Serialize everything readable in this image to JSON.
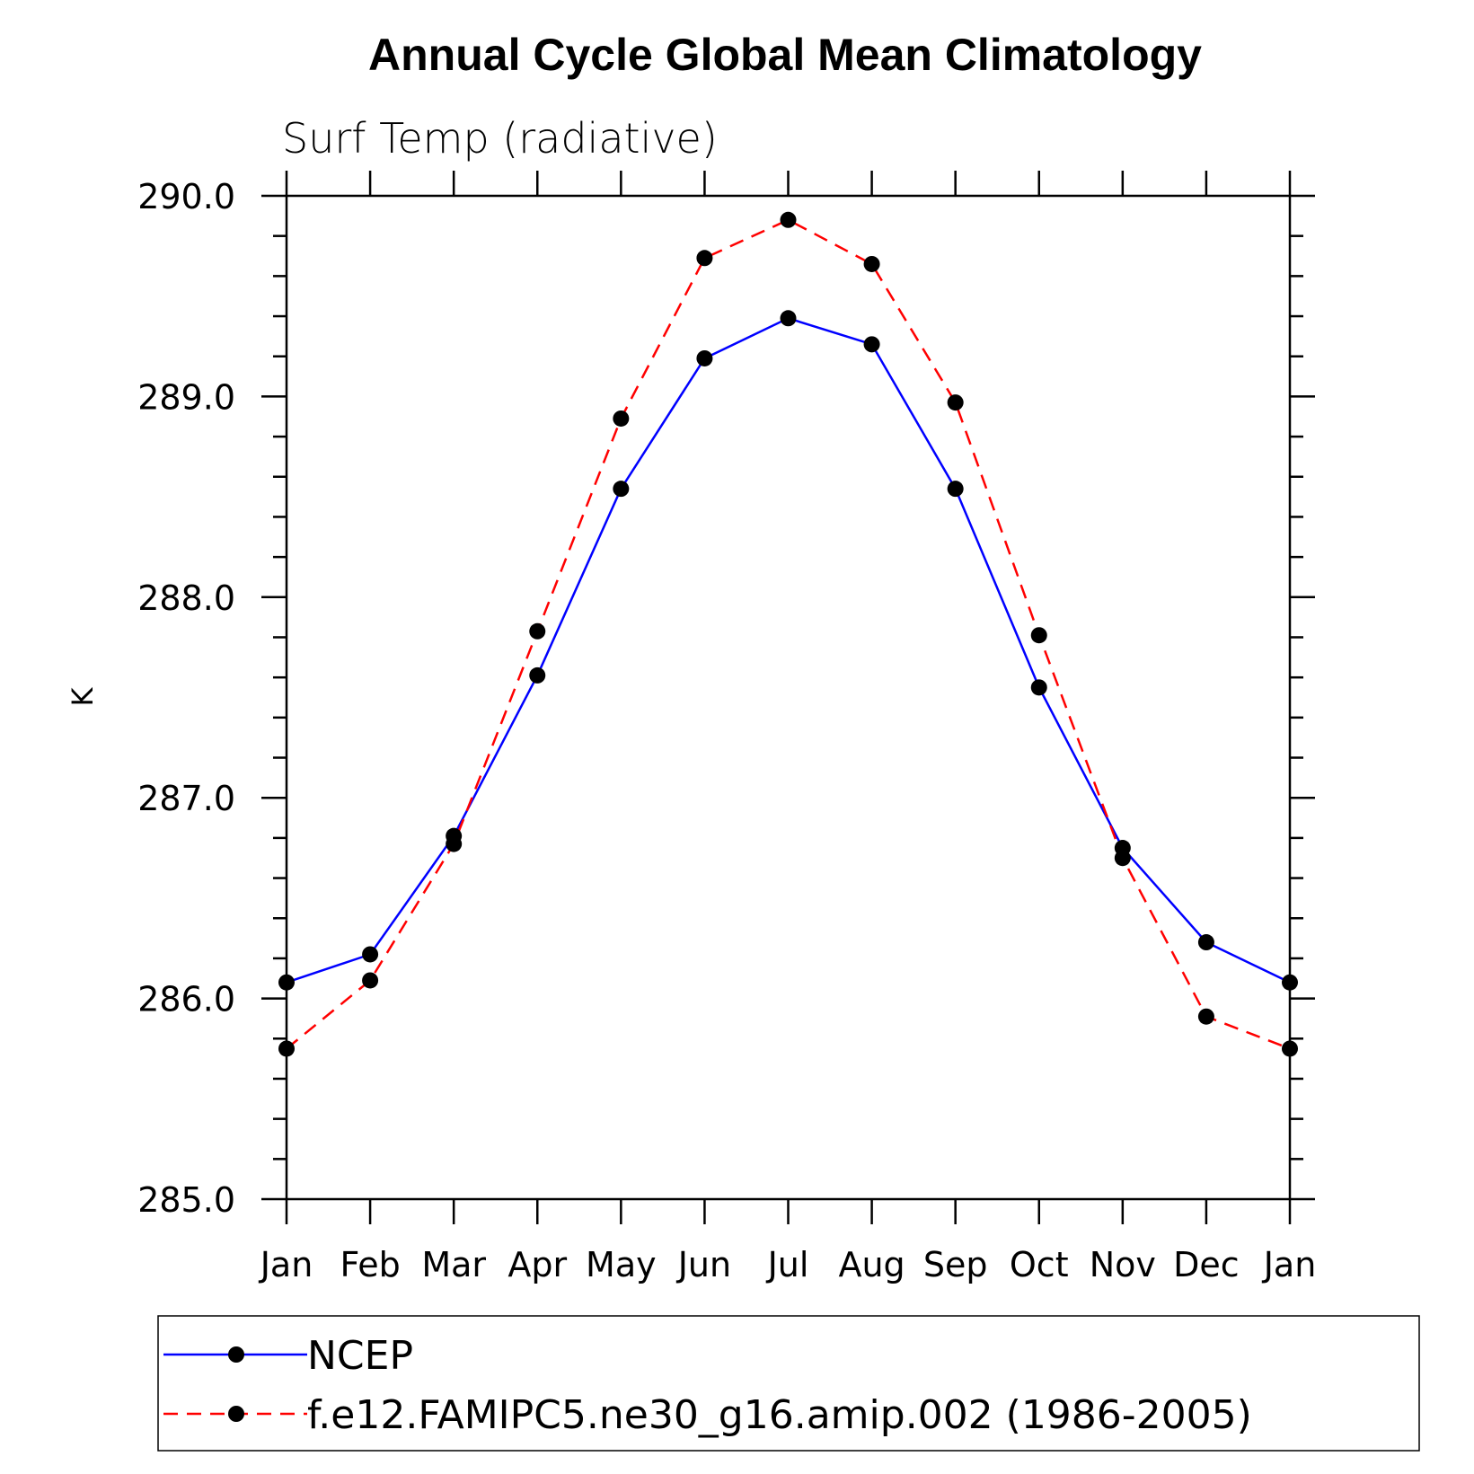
{
  "chart_data": {
    "type": "line",
    "title": "Annual Cycle Global Mean Climatology",
    "subtitle": "Surf Temp (radiative)",
    "ylabel": "K",
    "xlabel": "",
    "categories": [
      "Jan",
      "Feb",
      "Mar",
      "Apr",
      "May",
      "Jun",
      "Jul",
      "Aug",
      "Sep",
      "Oct",
      "Nov",
      "Dec",
      "Jan"
    ],
    "ylim": [
      285.0,
      290.0
    ],
    "yticks": [
      "285.0",
      "286.0",
      "287.0",
      "288.0",
      "289.0",
      "290.0"
    ],
    "series": [
      {
        "name": "NCEP",
        "color": "#0000ff",
        "style": "solid",
        "values": [
          286.08,
          286.22,
          286.81,
          287.61,
          288.54,
          289.19,
          289.39,
          289.26,
          288.54,
          287.55,
          286.75,
          286.28,
          286.08
        ]
      },
      {
        "name": "f.e12.FAMIPC5.ne30_g16.amip.002 (1986-2005)",
        "color": "#ff0000",
        "style": "dashed",
        "values": [
          285.75,
          286.09,
          286.77,
          287.83,
          288.89,
          289.69,
          289.88,
          289.66,
          288.97,
          287.81,
          286.7,
          285.91,
          285.75
        ]
      }
    ],
    "grid": false,
    "legend_position": "bottom"
  }
}
